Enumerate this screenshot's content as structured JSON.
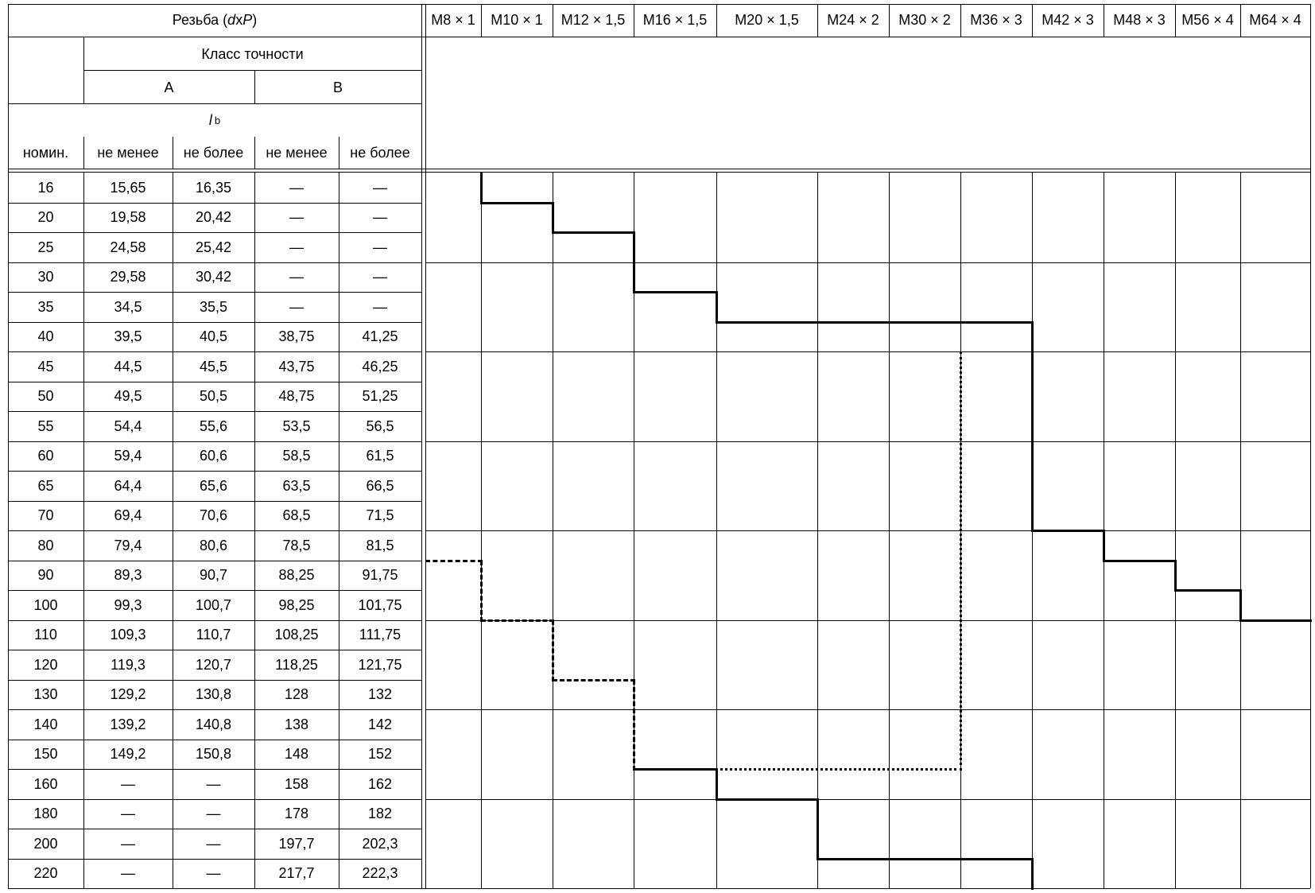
{
  "header": {
    "thread_label_prefix": "Резьба (",
    "thread_d": "d",
    "thread_x": " x ",
    "thread_P": "P",
    "thread_label_suffix": ")",
    "accuracy_class": "Класс точности",
    "class_a": "A",
    "class_b": "B",
    "length_symbol": "l",
    "length_sup": "b",
    "nominal": "номин.",
    "not_less": "не менее",
    "not_more": "не более"
  },
  "threads": [
    "M8 × 1",
    "M10 × 1",
    "M12 × 1,5",
    "M16 × 1,5",
    "M20 × 1,5",
    "M24 × 2",
    "M30 × 2",
    "M36 × 3",
    "M42 × 3",
    "M48 × 3",
    "M56 × 4",
    "M64 × 4"
  ],
  "rows": [
    [
      "16",
      "15,65",
      "16,35",
      "—",
      "—"
    ],
    [
      "20",
      "19,58",
      "20,42",
      "—",
      "—"
    ],
    [
      "25",
      "24,58",
      "25,42",
      "—",
      "—"
    ],
    [
      "30",
      "29,58",
      "30,42",
      "—",
      "—"
    ],
    [
      "35",
      "34,5",
      "35,5",
      "—",
      "—"
    ],
    [
      "40",
      "39,5",
      "40,5",
      "38,75",
      "41,25"
    ],
    [
      "45",
      "44,5",
      "45,5",
      "43,75",
      "46,25"
    ],
    [
      "50",
      "49,5",
      "50,5",
      "48,75",
      "51,25"
    ],
    [
      "55",
      "54,4",
      "55,6",
      "53,5",
      "56,5"
    ],
    [
      "60",
      "59,4",
      "60,6",
      "58,5",
      "61,5"
    ],
    [
      "65",
      "64,4",
      "65,6",
      "63,5",
      "66,5"
    ],
    [
      "70",
      "69,4",
      "70,6",
      "68,5",
      "71,5"
    ],
    [
      "80",
      "79,4",
      "80,6",
      "78,5",
      "81,5"
    ],
    [
      "90",
      "89,3",
      "90,7",
      "88,25",
      "91,75"
    ],
    [
      "100",
      "99,3",
      "100,7",
      "98,25",
      "101,75"
    ],
    [
      "110",
      "109,3",
      "110,7",
      "108,25",
      "111,75"
    ],
    [
      "120",
      "119,3",
      "120,7",
      "118,25",
      "121,75"
    ],
    [
      "130",
      "129,2",
      "130,8",
      "128",
      "132"
    ],
    [
      "140",
      "139,2",
      "140,8",
      "138",
      "142"
    ],
    [
      "150",
      "149,2",
      "150,8",
      "148",
      "152"
    ],
    [
      "160",
      "—",
      "—",
      "158",
      "162"
    ],
    [
      "180",
      "—",
      "—",
      "178",
      "182"
    ],
    [
      "200",
      "—",
      "—",
      "197,7",
      "202,3"
    ],
    [
      "220",
      "—",
      "—",
      "217,7",
      "222,3"
    ]
  ],
  "bound_lines": {
    "solid_upper_start_row_index": [
      0,
      1,
      2,
      4,
      5,
      5,
      5,
      5,
      12,
      13,
      14,
      15
    ],
    "solid_lower_end_row_index": [
      null,
      null,
      null,
      20,
      21,
      23,
      23,
      23,
      null,
      null,
      null,
      null
    ],
    "dashed_start_row_index": [
      13,
      15,
      17,
      20
    ],
    "dotted_span_threads": [
      "M16 × 1,5",
      "M20 × 1,5",
      "M24 × 2",
      "M30 × 2"
    ],
    "dotted_from_row_value": "40",
    "dotted_to_row_value": "150"
  }
}
